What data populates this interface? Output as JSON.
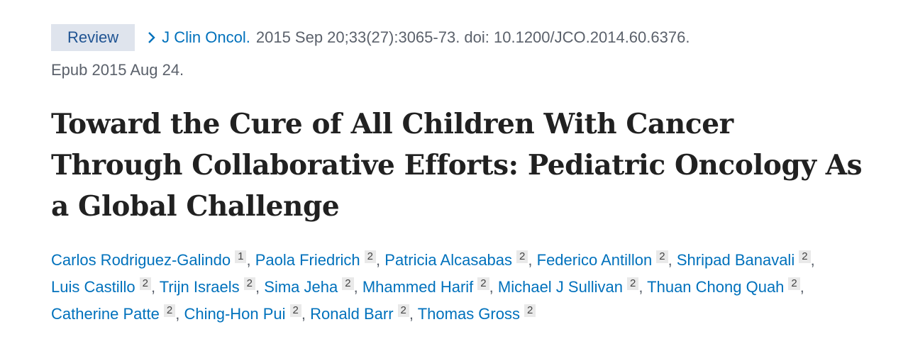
{
  "badge": "Review",
  "citation": {
    "journal": "J Clin Oncol.",
    "details": "2015 Sep 20;33(27):3065-73. doi: 10.1200/JCO.2014.60.6376.",
    "epub": "Epub 2015 Aug 24."
  },
  "title": "Toward the Cure of All Children With Cancer Through Collaborative Efforts: Pediatric Oncology As a Global Challenge",
  "separator": ",",
  "authors": [
    {
      "name": "Carlos Rodriguez-Galindo",
      "affiliation": "1"
    },
    {
      "name": "Paola Friedrich",
      "affiliation": "2"
    },
    {
      "name": "Patricia Alcasabas",
      "affiliation": "2"
    },
    {
      "name": "Federico Antillon",
      "affiliation": "2"
    },
    {
      "name": "Shripad Banavali",
      "affiliation": "2"
    },
    {
      "name": "Luis Castillo",
      "affiliation": "2"
    },
    {
      "name": "Trijn Israels",
      "affiliation": "2"
    },
    {
      "name": "Sima Jeha",
      "affiliation": "2"
    },
    {
      "name": "Mhammed Harif",
      "affiliation": "2"
    },
    {
      "name": "Michael J Sullivan",
      "affiliation": "2"
    },
    {
      "name": "Thuan Chong Quah",
      "affiliation": "2"
    },
    {
      "name": "Catherine Patte",
      "affiliation": "2"
    },
    {
      "name": "Ching-Hon Pui",
      "affiliation": "2"
    },
    {
      "name": "Ronald Barr",
      "affiliation": "2"
    },
    {
      "name": "Thomas Gross",
      "affiliation": "2"
    }
  ]
}
